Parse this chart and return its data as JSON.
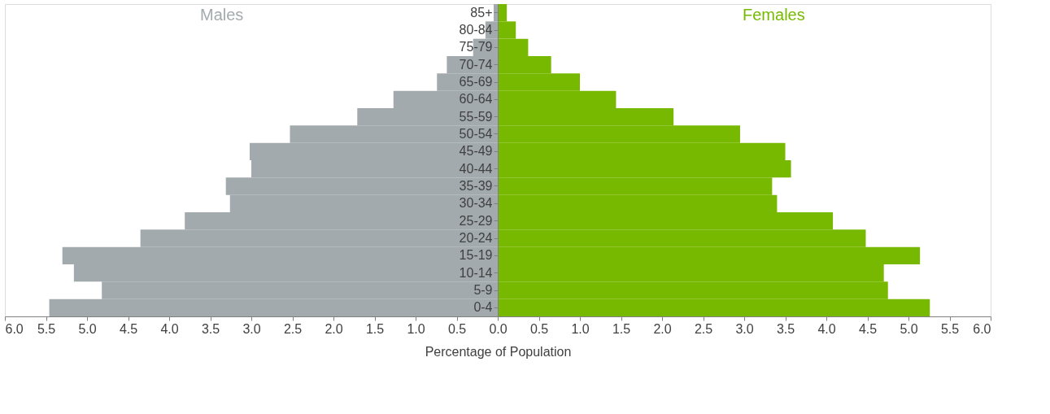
{
  "chart_data": {
    "type": "bar",
    "orientation": "horizontal",
    "stacked": true,
    "xlabel": "Percentage of Population",
    "categories": [
      "85+",
      "80-84",
      "75-79",
      "70-74",
      "65-69",
      "60-64",
      "55-59",
      "50-54",
      "45-49",
      "40-44",
      "35-39",
      "30-34",
      "25-29",
      "20-24",
      "15-19",
      "10-14",
      "5-9",
      "0-4"
    ],
    "series": [
      {
        "name": "Males",
        "color": "#a3aaae",
        "values": [
          -0.05,
          -0.15,
          -0.3,
          -0.62,
          -0.74,
          -1.27,
          -1.71,
          -2.53,
          -3.02,
          -3.0,
          -3.31,
          -3.26,
          -3.81,
          -4.35,
          -5.3,
          -5.16,
          -4.82,
          -5.46
        ]
      },
      {
        "name": "Females",
        "color": "#77b900",
        "values": [
          0.11,
          0.22,
          0.37,
          0.65,
          1.0,
          1.44,
          2.14,
          2.95,
          3.5,
          3.57,
          3.34,
          3.4,
          4.08,
          4.48,
          5.14,
          4.7,
          4.75,
          5.26
        ]
      }
    ],
    "xlim": [
      -6,
      6
    ],
    "xticks": [
      {
        "value": -6,
        "label": "6.0"
      },
      {
        "value": -5.5,
        "label": "5.5"
      },
      {
        "value": -5,
        "label": "5.0"
      },
      {
        "value": -4.5,
        "label": "4.5"
      },
      {
        "value": -4,
        "label": "4.0"
      },
      {
        "value": -3.5,
        "label": "3.5"
      },
      {
        "value": -3,
        "label": "3.0"
      },
      {
        "value": -2.5,
        "label": "2.5"
      },
      {
        "value": -2,
        "label": "2.0"
      },
      {
        "value": -1.5,
        "label": "1.5"
      },
      {
        "value": -1,
        "label": "1.0"
      },
      {
        "value": -0.5,
        "label": "0.5"
      },
      {
        "value": 0,
        "label": "0.0"
      },
      {
        "value": 0.5,
        "label": "0.5"
      },
      {
        "value": 1,
        "label": "1.0"
      },
      {
        "value": 1.5,
        "label": "1.5"
      },
      {
        "value": 2,
        "label": "2.0"
      },
      {
        "value": 2.5,
        "label": "2.5"
      },
      {
        "value": 3,
        "label": "3.0"
      },
      {
        "value": 3.5,
        "label": "3.5"
      },
      {
        "value": 4,
        "label": "4.0"
      },
      {
        "value": 4.5,
        "label": "4.5"
      },
      {
        "value": 5,
        "label": "5.0"
      },
      {
        "value": 5.5,
        "label": "5.5"
      },
      {
        "value": 6,
        "label": "6.0"
      }
    ],
    "grid": false,
    "legend": false
  }
}
